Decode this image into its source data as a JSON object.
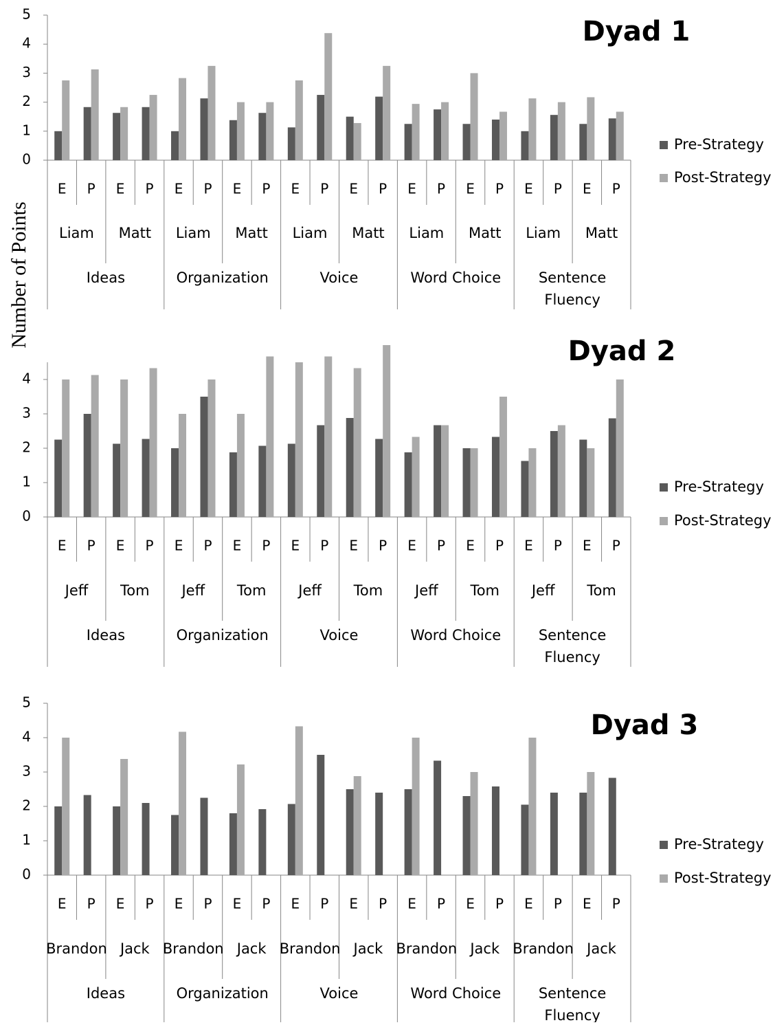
{
  "ylabel": "Number of Points",
  "colors": {
    "pre": "#595959",
    "post": "#aaaaaa",
    "axis": "#868686",
    "text": "#000000"
  },
  "chart_data": [
    {
      "type": "bar",
      "title": "Dyad 1",
      "ylim": [
        0,
        5
      ],
      "yticks": [
        0,
        1,
        2,
        3,
        4,
        5
      ],
      "legend": [
        "Pre-Strategy",
        "Post-Strategy"
      ],
      "legend_position": "right",
      "traits": [
        "Ideas",
        "Organization",
        "Voice",
        "Word Choice",
        "Sentence Fluency"
      ],
      "students": [
        "Liam",
        "Matt"
      ],
      "levels": [
        "E",
        "P"
      ],
      "series": [
        {
          "name": "Pre-Strategy",
          "values": [
            1.0,
            1.83,
            1.63,
            1.83,
            1.0,
            2.13,
            1.38,
            1.63,
            1.13,
            2.25,
            1.5,
            2.19,
            1.25,
            1.75,
            1.25,
            1.4,
            1.0,
            1.56,
            1.25,
            1.44
          ]
        },
        {
          "name": "Post-Strategy",
          "values": [
            2.75,
            3.13,
            1.83,
            2.25,
            2.83,
            3.25,
            2.0,
            2.0,
            2.75,
            4.38,
            1.28,
            3.25,
            1.94,
            2.0,
            3.0,
            1.67,
            2.13,
            2.0,
            2.17,
            1.67
          ]
        }
      ]
    },
    {
      "type": "bar",
      "title": "Dyad 2",
      "ylim": [
        0,
        4.5
      ],
      "yticks": [
        0,
        1,
        2,
        3,
        4
      ],
      "legend": [
        "Pre-Strategy",
        "Post-Strategy"
      ],
      "legend_position": "right",
      "traits": [
        "Ideas",
        "Organization",
        "Voice",
        "Word Choice",
        "Sentence Fluency"
      ],
      "students": [
        "Jeff",
        "Tom"
      ],
      "levels": [
        "E",
        "P"
      ],
      "series": [
        {
          "name": "Pre-Strategy",
          "values": [
            2.25,
            3.0,
            2.13,
            2.27,
            2.0,
            3.5,
            1.88,
            2.07,
            2.13,
            2.67,
            2.88,
            2.27,
            1.88,
            2.67,
            2.0,
            2.33,
            1.63,
            2.5,
            2.25,
            2.87
          ]
        },
        {
          "name": "Post-Strategy",
          "values": [
            4.0,
            4.13,
            4.0,
            4.33,
            3.0,
            4.0,
            3.0,
            4.67,
            4.5,
            4.67,
            4.33,
            5.0,
            2.33,
            2.67,
            2.0,
            3.5,
            2.0,
            2.67,
            2.0,
            4.0
          ]
        }
      ]
    },
    {
      "type": "bar",
      "title": "Dyad 3",
      "ylim": [
        0,
        5
      ],
      "yticks": [
        0,
        1,
        2,
        3,
        4,
        5
      ],
      "legend": [
        "Pre-Strategy",
        "Post-Strategy"
      ],
      "legend_position": "right",
      "traits": [
        "Ideas",
        "Organization",
        "Voice",
        "Word Choice",
        "Sentence Fluency"
      ],
      "students": [
        "Brandon",
        "Jack"
      ],
      "levels": [
        "E",
        "P"
      ],
      "series": [
        {
          "name": "Pre-Strategy",
          "values": [
            2.0,
            2.33,
            2.0,
            2.1,
            1.75,
            2.25,
            1.8,
            1.92,
            2.07,
            3.5,
            2.5,
            2.4,
            2.5,
            3.33,
            2.3,
            2.58,
            2.05,
            2.4,
            2.4,
            2.83
          ]
        },
        {
          "name": "Post-Strategy",
          "values": [
            4.0,
            null,
            3.38,
            null,
            4.17,
            null,
            3.22,
            null,
            4.33,
            null,
            2.88,
            null,
            4.0,
            null,
            3.0,
            null,
            4.0,
            null,
            3.0,
            null
          ]
        }
      ]
    }
  ]
}
